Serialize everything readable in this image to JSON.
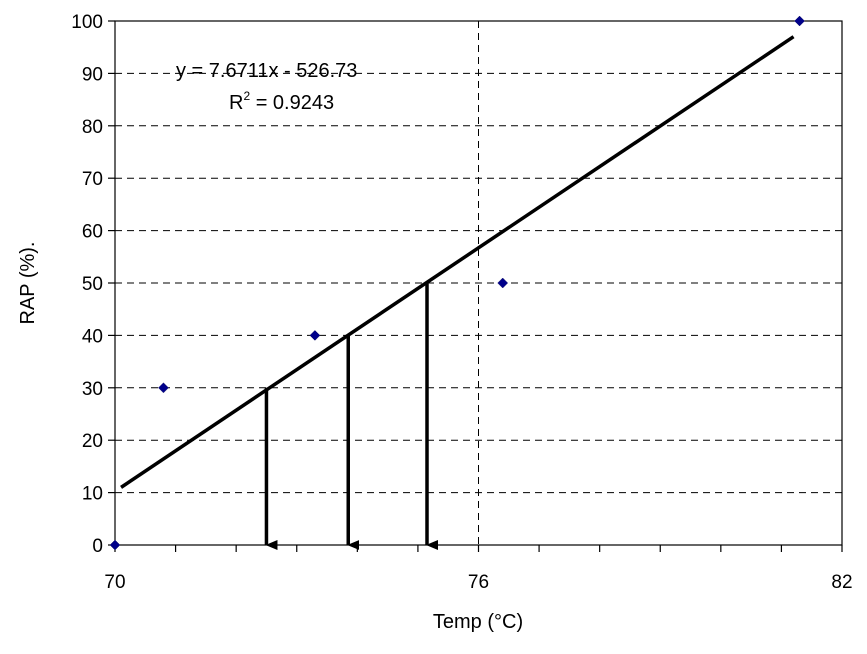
{
  "chart_data": {
    "type": "scatter",
    "xlabel": "Temp (°C)",
    "ylabel": "RAP (%).",
    "xlim": [
      70,
      82
    ],
    "ylim": [
      0,
      100
    ],
    "x_ticks": [
      70,
      76,
      82
    ],
    "y_ticks": [
      0,
      10,
      20,
      30,
      40,
      50,
      60,
      70,
      80,
      90,
      100
    ],
    "grid": "horizontal dashed at each y tick; vertical dashed at x = 76",
    "series": [
      {
        "type": "scatter",
        "color": "#00008B",
        "points": [
          {
            "x": 70.0,
            "y": 0
          },
          {
            "x": 70.8,
            "y": 30
          },
          {
            "x": 73.3,
            "y": 40
          },
          {
            "x": 76.4,
            "y": 50
          },
          {
            "x": 81.3,
            "y": 100
          }
        ]
      },
      {
        "type": "line",
        "color": "#000000",
        "points": [
          {
            "x": 70.1,
            "y": 11
          },
          {
            "x": 81.2,
            "y": 97
          }
        ]
      }
    ],
    "equation": "y = 7.6711x - 526.73",
    "r_squared": {
      "prefix": "R",
      "exponent": "2",
      "value": " = 0.9243"
    },
    "arrows": [
      {
        "x": 72.5,
        "y_from": 30,
        "y_to": 0
      },
      {
        "x": 73.85,
        "y_from": 40,
        "y_to": 0
      },
      {
        "x": 75.15,
        "y_from": 50,
        "y_to": 0
      }
    ]
  }
}
